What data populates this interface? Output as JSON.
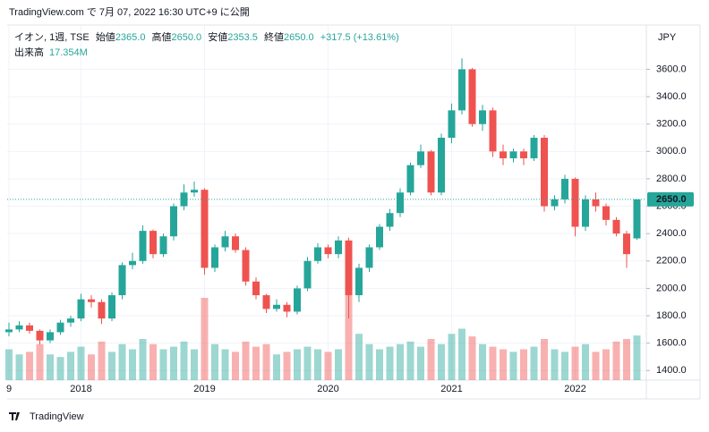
{
  "header": {
    "published": "TradingView.com で 7月 07, 2022 16:30 UTC+9 に公開"
  },
  "legend": {
    "symbol": "イオン, 1週, TSE",
    "open_label": "始値",
    "open": "2365.0",
    "high_label": "高値",
    "high": "2650.0",
    "low_label": "安値",
    "low": "2353.5",
    "close_label": "終値",
    "close": "2650.0",
    "change": "+317.5 (+13.61%)",
    "volume_label": "出来高",
    "volume": "17.354M"
  },
  "footer": {
    "brand": "TradingView"
  },
  "chart_data": {
    "type": "candlestick",
    "currency": "JPY",
    "last_price_label": "2650.0",
    "up_color": "#26a69a",
    "down_color": "#ef5350",
    "grid": true,
    "categories": [
      "9",
      null,
      null,
      null,
      null,
      null,
      null,
      "2018",
      null,
      null,
      null,
      null,
      null,
      null,
      null,
      null,
      null,
      null,
      null,
      "2019",
      null,
      null,
      null,
      null,
      null,
      null,
      null,
      null,
      null,
      null,
      null,
      "2020",
      null,
      null,
      null,
      null,
      null,
      null,
      null,
      null,
      null,
      null,
      null,
      "2021",
      null,
      null,
      null,
      null,
      null,
      null,
      null,
      null,
      null,
      null,
      null,
      "2022",
      null,
      null,
      null,
      null,
      null,
      null
    ],
    "open": [
      1680,
      1700,
      1730,
      1690,
      1620,
      1680,
      1750,
      1780,
      1920,
      1900,
      1780,
      1950,
      2170,
      2200,
      2420,
      2250,
      2380,
      2600,
      2700,
      2720,
      2150,
      2300,
      2380,
      2280,
      2050,
      1950,
      1850,
      1880,
      1830,
      2000,
      2200,
      2300,
      2250,
      2350,
      1950,
      2150,
      2300,
      2450,
      2550,
      2700,
      2900,
      3000,
      2700,
      3100,
      3300,
      3600,
      3200,
      3300,
      3000,
      2950,
      3000,
      2950,
      3100,
      2600,
      2650,
      2800,
      2450,
      2650,
      2600,
      2500,
      2400,
      2365
    ],
    "high": [
      1750,
      1760,
      1750,
      1700,
      1700,
      1770,
      1800,
      1960,
      1950,
      1920,
      1970,
      2190,
      2260,
      2460,
      2430,
      2400,
      2620,
      2760,
      2780,
      2730,
      2320,
      2420,
      2400,
      2300,
      2080,
      1960,
      1920,
      1900,
      2020,
      2230,
      2330,
      2320,
      2380,
      2370,
      2180,
      2320,
      2470,
      2580,
      2730,
      2920,
      3050,
      3010,
      3130,
      3350,
      3680,
      3610,
      3340,
      3320,
      3050,
      3020,
      3020,
      3120,
      3120,
      2680,
      2830,
      2810,
      2680,
      2700,
      2620,
      2520,
      2420,
      2650
    ],
    "low": [
      1650,
      1680,
      1670,
      1590,
      1600,
      1660,
      1720,
      1760,
      1860,
      1740,
      1760,
      1920,
      2140,
      2180,
      2220,
      2230,
      2350,
      2570,
      2670,
      2100,
      2120,
      2270,
      2260,
      2020,
      1920,
      1820,
      1830,
      1790,
      1810,
      1980,
      2180,
      2220,
      2220,
      1780,
      1900,
      2120,
      2280,
      2420,
      2520,
      2680,
      2880,
      2680,
      2680,
      3060,
      3270,
      3180,
      3150,
      2960,
      2900,
      2920,
      2900,
      2930,
      2560,
      2570,
      2620,
      2380,
      2420,
      2560,
      2460,
      2380,
      2150,
      2353.5
    ],
    "close": [
      1700,
      1730,
      1690,
      1620,
      1680,
      1750,
      1780,
      1920,
      1900,
      1780,
      1950,
      2170,
      2200,
      2420,
      2250,
      2380,
      2600,
      2700,
      2720,
      2150,
      2300,
      2380,
      2280,
      2050,
      1950,
      1850,
      1880,
      1830,
      2000,
      2200,
      2300,
      2250,
      2350,
      1950,
      2150,
      2300,
      2450,
      2550,
      2700,
      2900,
      3000,
      2700,
      3100,
      3300,
      3600,
      3200,
      3300,
      3000,
      2950,
      3000,
      2950,
      3100,
      2600,
      2650,
      2800,
      2450,
      2650,
      2600,
      2500,
      2400,
      2250,
      2650
    ],
    "volume": [
      12,
      10,
      11,
      14,
      10,
      9,
      11,
      13,
      10,
      15,
      11,
      14,
      12,
      16,
      14,
      12,
      13,
      15,
      12,
      32,
      14,
      12,
      11,
      15,
      13,
      14,
      10,
      11,
      12,
      13,
      12,
      11,
      12,
      38,
      18,
      14,
      12,
      13,
      14,
      15,
      13,
      16,
      14,
      18,
      20,
      17,
      14,
      13,
      12,
      11,
      12,
      13,
      16,
      12,
      11,
      13,
      14,
      11,
      12,
      15,
      16,
      17.354
    ],
    "volume_lim": [
      0,
      40
    ],
    "ylim": [
      1330,
      3910
    ],
    "yticks": [
      {
        "value": 1400,
        "label": "1400.0"
      },
      {
        "value": 1600,
        "label": "1600.0"
      },
      {
        "value": 1800,
        "label": "1800.0"
      },
      {
        "value": 2000,
        "label": "2000.0"
      },
      {
        "value": 2200,
        "label": "2200.0"
      },
      {
        "value": 2400,
        "label": "2400.0"
      },
      {
        "value": 2600,
        "label": "2600.0"
      },
      {
        "value": 2800,
        "label": "2800.0"
      },
      {
        "value": 3000,
        "label": "3000.0"
      },
      {
        "value": 3200,
        "label": "3200.0"
      },
      {
        "value": 3400,
        "label": "3400.0"
      },
      {
        "value": 3600,
        "label": "3600.0"
      }
    ]
  }
}
